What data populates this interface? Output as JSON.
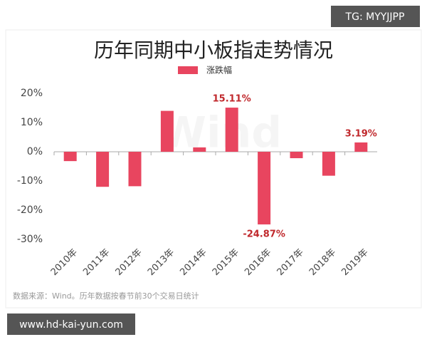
{
  "chart_data": {
    "type": "bar",
    "title": "历年同期中小板指走势情况",
    "categories": [
      "2010年",
      "2011年",
      "2012年",
      "2013年",
      "2014年",
      "2015年",
      "2016年",
      "2017年",
      "2018年",
      "2019年"
    ],
    "series": [
      {
        "name": "涨跌幅",
        "color": "#e8455f",
        "values": [
          -3.2,
          -12,
          -11.8,
          14,
          1.5,
          15.11,
          -24.87,
          -2.2,
          -8.2,
          3.19
        ],
        "value_labels": [
          null,
          null,
          null,
          null,
          null,
          "15.11%",
          "-24.87%",
          null,
          null,
          "3.19%"
        ]
      }
    ],
    "ylim": [
      -30,
      20
    ],
    "yticks": [
      {
        "value": 20,
        "label": "20%"
      },
      {
        "value": 10,
        "label": "10%"
      },
      {
        "value": 0,
        "label": "0%"
      },
      {
        "value": -10,
        "label": "-10%"
      },
      {
        "value": -20,
        "label": "-20%"
      },
      {
        "value": -30,
        "label": "-30%"
      }
    ],
    "grid": false,
    "watermark": "Wind",
    "source": "数据来源：Wind。历年数据按春节前30个交易日统计"
  },
  "overlays": {
    "top_right": "TG: MYYJJPP",
    "bottom_left": "www.hd-kai-yun.com"
  }
}
